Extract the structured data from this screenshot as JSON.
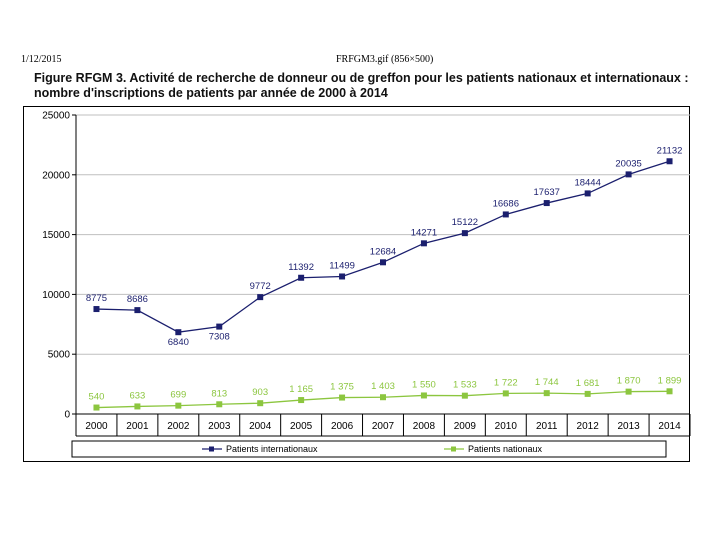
{
  "header": {
    "date": "1/12/2015",
    "file": "FRFGM3.gif (856×500)"
  },
  "figure": {
    "label": "Figure RFGM 3.",
    "title_line1": "Activité de recherche de donneur ou de greffon pour les patients nationaux et internationaux :",
    "title_line2": "nombre d'inscriptions de patients par année de 2000 à 2014"
  },
  "colors": {
    "international": "#1b1f6e",
    "national": "#8cc63f"
  },
  "chart_data": {
    "type": "line",
    "title": "",
    "xlabel": "",
    "ylabel": "",
    "x": [
      "2000",
      "2001",
      "2002",
      "2003",
      "2004",
      "2005",
      "2006",
      "2007",
      "2008",
      "2009",
      "2010",
      "2011",
      "2012",
      "2013",
      "2014"
    ],
    "yticks": [
      0,
      5000,
      10000,
      15000,
      20000,
      25000
    ],
    "ylim": [
      0,
      25000
    ],
    "grid": true,
    "legend": "bottom",
    "series": [
      {
        "name": "Patients internationaux",
        "values": [
          8775,
          8686,
          6840,
          7308,
          9772,
          11392,
          11499,
          12684,
          14271,
          15122,
          16686,
          17637,
          18444,
          20035,
          21132
        ],
        "labels": [
          "8775",
          "8686",
          "6840",
          "7308",
          "9772",
          "11392",
          "11499",
          "12684",
          "14271",
          "15122",
          "16686",
          "17637",
          "18444",
          "20035",
          "21132"
        ]
      },
      {
        "name": "Patients nationaux",
        "values": [
          540,
          633,
          699,
          813,
          903,
          1165,
          1375,
          1403,
          1550,
          1533,
          1722,
          1744,
          1681,
          1870,
          1899
        ],
        "labels": [
          "540",
          "633",
          "699",
          "813",
          "903",
          "1 165",
          "1 375",
          "1 403",
          "1 550",
          "1 533",
          "1 722",
          "1 744",
          "1 681",
          "1 870",
          "1 899"
        ]
      }
    ]
  }
}
